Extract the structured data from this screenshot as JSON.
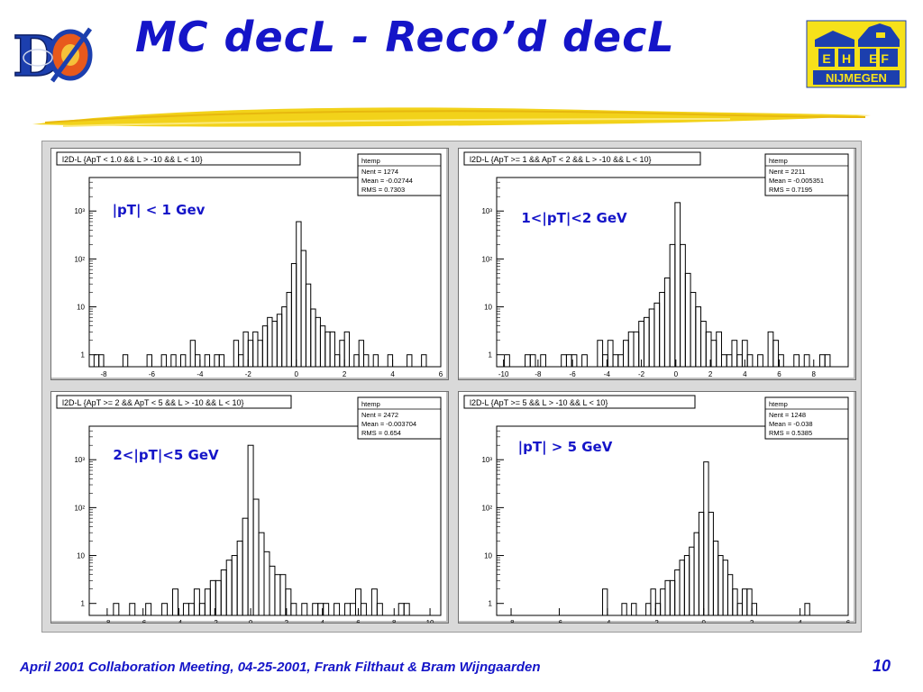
{
  "slide": {
    "title": "MC decL - Reco’d decL",
    "footer": "April 2001 Collaboration Meeting, 04-25-2001, Frank Filthaut & Bram Wijngaarden",
    "page_number": "10",
    "logo_right": {
      "top_left": "E",
      "top_mid": "H",
      "top_right": "E F",
      "bottom": "NIJMEGEN"
    },
    "logo_left_text": "DØ",
    "colors": {
      "title": "#1515c8",
      "footer": "#1515c8",
      "label": "#1515c8",
      "swoosh": "#f2d21a",
      "logo_yellow": "#f6e11a",
      "logo_blue": "#1c3fae"
    }
  },
  "chart_data": [
    {
      "type": "histogram",
      "title": "l2D-L {ApT < 1.0 && L > -10 && L < 10}",
      "annotation": "|pT| < 1 Gev",
      "stats": {
        "name": "htemp",
        "entries_label": "Nent = 1274",
        "mean_label": "Mean = -0.02744",
        "rms_label": "RMS = 0.7303"
      },
      "y_scale": "log",
      "y_ticks": [
        "1",
        "10",
        "10²",
        "10³"
      ],
      "xlim": [
        -8.6,
        6.0
      ],
      "x_ticks": [
        "-8",
        "-6",
        "-4",
        "-2",
        "0",
        "2",
        "4",
        "6"
      ],
      "bins": [
        [
          -8.3,
          1
        ],
        [
          -8.1,
          1
        ],
        [
          -7.9,
          0
        ],
        [
          -7.7,
          0
        ],
        [
          -7.5,
          0
        ],
        [
          -7.3,
          0
        ],
        [
          -7.1,
          1
        ],
        [
          -6.9,
          0
        ],
        [
          -6.7,
          0
        ],
        [
          -6.5,
          0
        ],
        [
          -6.3,
          0
        ],
        [
          -6.1,
          1
        ],
        [
          -5.9,
          0
        ],
        [
          -5.7,
          0
        ],
        [
          -5.5,
          1
        ],
        [
          -5.3,
          0
        ],
        [
          -5.1,
          1
        ],
        [
          -4.9,
          0
        ],
        [
          -4.7,
          1
        ],
        [
          -4.5,
          0
        ],
        [
          -4.3,
          2
        ],
        [
          -4.1,
          1
        ],
        [
          -3.9,
          0
        ],
        [
          -3.7,
          1
        ],
        [
          -3.5,
          0
        ],
        [
          -3.3,
          1
        ],
        [
          -3.1,
          1
        ],
        [
          -2.9,
          0
        ],
        [
          -2.7,
          0
        ],
        [
          -2.5,
          2
        ],
        [
          -2.3,
          1
        ],
        [
          -2.1,
          3
        ],
        [
          -1.9,
          2
        ],
        [
          -1.7,
          3
        ],
        [
          -1.5,
          2
        ],
        [
          -1.3,
          4
        ],
        [
          -1.1,
          6
        ],
        [
          -0.9,
          5
        ],
        [
          -0.7,
          7
        ],
        [
          -0.5,
          10
        ],
        [
          -0.3,
          20
        ],
        [
          -0.1,
          80
        ],
        [
          0.1,
          600
        ],
        [
          0.3,
          150
        ],
        [
          0.5,
          30
        ],
        [
          0.7,
          9
        ],
        [
          0.9,
          6
        ],
        [
          1.1,
          4
        ],
        [
          1.3,
          3
        ],
        [
          1.5,
          3
        ],
        [
          1.7,
          1
        ],
        [
          1.9,
          2
        ],
        [
          2.1,
          3
        ],
        [
          2.3,
          0
        ],
        [
          2.5,
          1
        ],
        [
          2.7,
          2
        ],
        [
          2.9,
          1
        ],
        [
          3.1,
          0
        ],
        [
          3.3,
          1
        ],
        [
          3.5,
          0
        ],
        [
          3.7,
          0
        ],
        [
          3.9,
          1
        ],
        [
          4.1,
          0
        ],
        [
          4.3,
          0
        ],
        [
          4.5,
          0
        ],
        [
          4.7,
          1
        ],
        [
          4.9,
          0
        ],
        [
          5.1,
          0
        ],
        [
          5.3,
          1
        ]
      ]
    },
    {
      "type": "histogram",
      "title": "l2D-L {ApT >= 1 && ApT < 2 && L > -10 && L < 10}",
      "annotation": "1<|pT|<2 GeV",
      "stats": {
        "name": "htemp",
        "entries_label": "Nent = 2211",
        "mean_label": "Mean = -0.005351",
        "rms_label": "RMS = 0.7195"
      },
      "y_scale": "log",
      "y_ticks": [
        "1",
        "10",
        "10²",
        "10³"
      ],
      "xlim": [
        -10.4,
        10.0
      ],
      "x_ticks": [
        "-10",
        "-8",
        "-6",
        "-4",
        "-2",
        "0",
        "2",
        "4",
        "6",
        "8"
      ],
      "bins": [
        [
          -9.8,
          1
        ],
        [
          -9.5,
          0
        ],
        [
          -9.2,
          0
        ],
        [
          -8.9,
          0
        ],
        [
          -8.6,
          1
        ],
        [
          -8.3,
          1
        ],
        [
          -8.0,
          0
        ],
        [
          -7.7,
          1
        ],
        [
          -7.4,
          0
        ],
        [
          -7.1,
          0
        ],
        [
          -6.8,
          0
        ],
        [
          -6.5,
          1
        ],
        [
          -6.2,
          1
        ],
        [
          -5.9,
          1
        ],
        [
          -5.6,
          0
        ],
        [
          -5.3,
          1
        ],
        [
          -5.0,
          0
        ],
        [
          -4.7,
          0
        ],
        [
          -4.4,
          2
        ],
        [
          -4.1,
          1
        ],
        [
          -3.8,
          2
        ],
        [
          -3.5,
          1
        ],
        [
          -3.2,
          1
        ],
        [
          -2.9,
          2
        ],
        [
          -2.6,
          3
        ],
        [
          -2.3,
          3
        ],
        [
          -2.0,
          5
        ],
        [
          -1.7,
          6
        ],
        [
          -1.4,
          9
        ],
        [
          -1.1,
          12
        ],
        [
          -0.8,
          20
        ],
        [
          -0.5,
          40
        ],
        [
          -0.2,
          200
        ],
        [
          0.1,
          1500
        ],
        [
          0.4,
          200
        ],
        [
          0.7,
          50
        ],
        [
          1.0,
          20
        ],
        [
          1.3,
          10
        ],
        [
          1.6,
          5
        ],
        [
          1.9,
          3
        ],
        [
          2.2,
          2
        ],
        [
          2.5,
          3
        ],
        [
          2.8,
          1
        ],
        [
          3.1,
          1
        ],
        [
          3.4,
          2
        ],
        [
          3.7,
          1
        ],
        [
          4.0,
          2
        ],
        [
          4.3,
          1
        ],
        [
          4.6,
          0
        ],
        [
          4.9,
          1
        ],
        [
          5.2,
          0
        ],
        [
          5.5,
          3
        ],
        [
          5.8,
          2
        ],
        [
          6.1,
          1
        ],
        [
          6.4,
          0
        ],
        [
          6.7,
          0
        ],
        [
          7.0,
          1
        ],
        [
          7.3,
          0
        ],
        [
          7.6,
          1
        ],
        [
          7.9,
          0
        ],
        [
          8.2,
          0
        ],
        [
          8.5,
          1
        ],
        [
          8.8,
          1
        ]
      ]
    },
    {
      "type": "histogram",
      "title": "l2D-L {ApT >= 2 && ApT < 5 && L > -10 && L < 10}",
      "annotation": "2<|pT|<5 GeV",
      "stats": {
        "name": "htemp",
        "entries_label": "Nent = 2472",
        "mean_label": "Mean = -0.003704",
        "rms_label": "RMS = 0.654"
      },
      "y_scale": "log",
      "y_ticks": [
        "1",
        "10",
        "10²",
        "10³"
      ],
      "xlim": [
        -9.0,
        10.6
      ],
      "x_ticks": [
        "-8",
        "-6",
        "-4",
        "-2",
        "0",
        "2",
        "4",
        "6",
        "8",
        "10"
      ],
      "bins": [
        [
          -7.5,
          1
        ],
        [
          -7.2,
          0
        ],
        [
          -6.9,
          0
        ],
        [
          -6.6,
          1
        ],
        [
          -6.3,
          0
        ],
        [
          -6.0,
          0
        ],
        [
          -5.7,
          1
        ],
        [
          -5.4,
          0
        ],
        [
          -5.1,
          0
        ],
        [
          -4.8,
          1
        ],
        [
          -4.5,
          0
        ],
        [
          -4.2,
          2
        ],
        [
          -3.9,
          0
        ],
        [
          -3.6,
          1
        ],
        [
          -3.3,
          1
        ],
        [
          -3.0,
          2
        ],
        [
          -2.7,
          1
        ],
        [
          -2.4,
          2
        ],
        [
          -2.1,
          3
        ],
        [
          -1.8,
          3
        ],
        [
          -1.5,
          5
        ],
        [
          -1.2,
          8
        ],
        [
          -0.9,
          10
        ],
        [
          -0.6,
          20
        ],
        [
          -0.3,
          60
        ],
        [
          0.0,
          2000
        ],
        [
          0.3,
          150
        ],
        [
          0.6,
          30
        ],
        [
          0.9,
          12
        ],
        [
          1.2,
          6
        ],
        [
          1.5,
          4
        ],
        [
          1.8,
          4
        ],
        [
          2.1,
          2
        ],
        [
          2.4,
          1
        ],
        [
          2.7,
          0
        ],
        [
          3.0,
          1
        ],
        [
          3.3,
          0
        ],
        [
          3.6,
          1
        ],
        [
          3.9,
          1
        ],
        [
          4.2,
          1
        ],
        [
          4.5,
          0
        ],
        [
          4.8,
          1
        ],
        [
          5.1,
          0
        ],
        [
          5.4,
          1
        ],
        [
          5.7,
          1
        ],
        [
          6.0,
          2
        ],
        [
          6.3,
          1
        ],
        [
          6.6,
          0
        ],
        [
          6.9,
          2
        ],
        [
          7.2,
          1
        ],
        [
          7.5,
          0
        ],
        [
          7.8,
          0
        ],
        [
          8.1,
          0
        ],
        [
          8.4,
          1
        ],
        [
          8.7,
          1
        ]
      ]
    },
    {
      "type": "histogram",
      "title": "l2D-L {ApT >= 5 && L > -10 && L < 10}",
      "annotation": "|pT| > 5 GeV",
      "stats": {
        "name": "htemp",
        "entries_label": "Nent = 1248",
        "mean_label": "Mean = -0.038",
        "rms_label": "RMS = 0.5385"
      },
      "y_scale": "log",
      "y_ticks": [
        "1",
        "10",
        "10²",
        "10³"
      ],
      "xlim": [
        -8.6,
        6.0
      ],
      "x_ticks": [
        "-8",
        "-6",
        "-4",
        "-2",
        "0",
        "2",
        "4",
        "6"
      ],
      "bins": [
        [
          -4.1,
          2
        ],
        [
          -3.9,
          0
        ],
        [
          -3.7,
          0
        ],
        [
          -3.5,
          0
        ],
        [
          -3.3,
          1
        ],
        [
          -3.1,
          0
        ],
        [
          -2.9,
          1
        ],
        [
          -2.7,
          0
        ],
        [
          -2.5,
          0
        ],
        [
          -2.3,
          1
        ],
        [
          -2.1,
          2
        ],
        [
          -1.9,
          1
        ],
        [
          -1.7,
          2
        ],
        [
          -1.5,
          3
        ],
        [
          -1.3,
          3
        ],
        [
          -1.1,
          5
        ],
        [
          -0.9,
          8
        ],
        [
          -0.7,
          10
        ],
        [
          -0.5,
          15
        ],
        [
          -0.3,
          30
        ],
        [
          -0.1,
          80
        ],
        [
          0.1,
          900
        ],
        [
          0.3,
          80
        ],
        [
          0.5,
          20
        ],
        [
          0.7,
          10
        ],
        [
          0.9,
          8
        ],
        [
          1.1,
          4
        ],
        [
          1.3,
          2
        ],
        [
          1.5,
          1
        ],
        [
          1.7,
          2
        ],
        [
          1.9,
          2
        ],
        [
          2.1,
          1
        ],
        [
          2.3,
          0
        ],
        [
          2.5,
          0
        ],
        [
          2.7,
          0
        ],
        [
          2.9,
          0
        ],
        [
          3.1,
          0
        ],
        [
          3.3,
          0
        ],
        [
          3.5,
          0
        ],
        [
          3.7,
          0
        ],
        [
          3.9,
          0
        ],
        [
          4.1,
          0
        ],
        [
          4.3,
          1
        ]
      ]
    }
  ]
}
